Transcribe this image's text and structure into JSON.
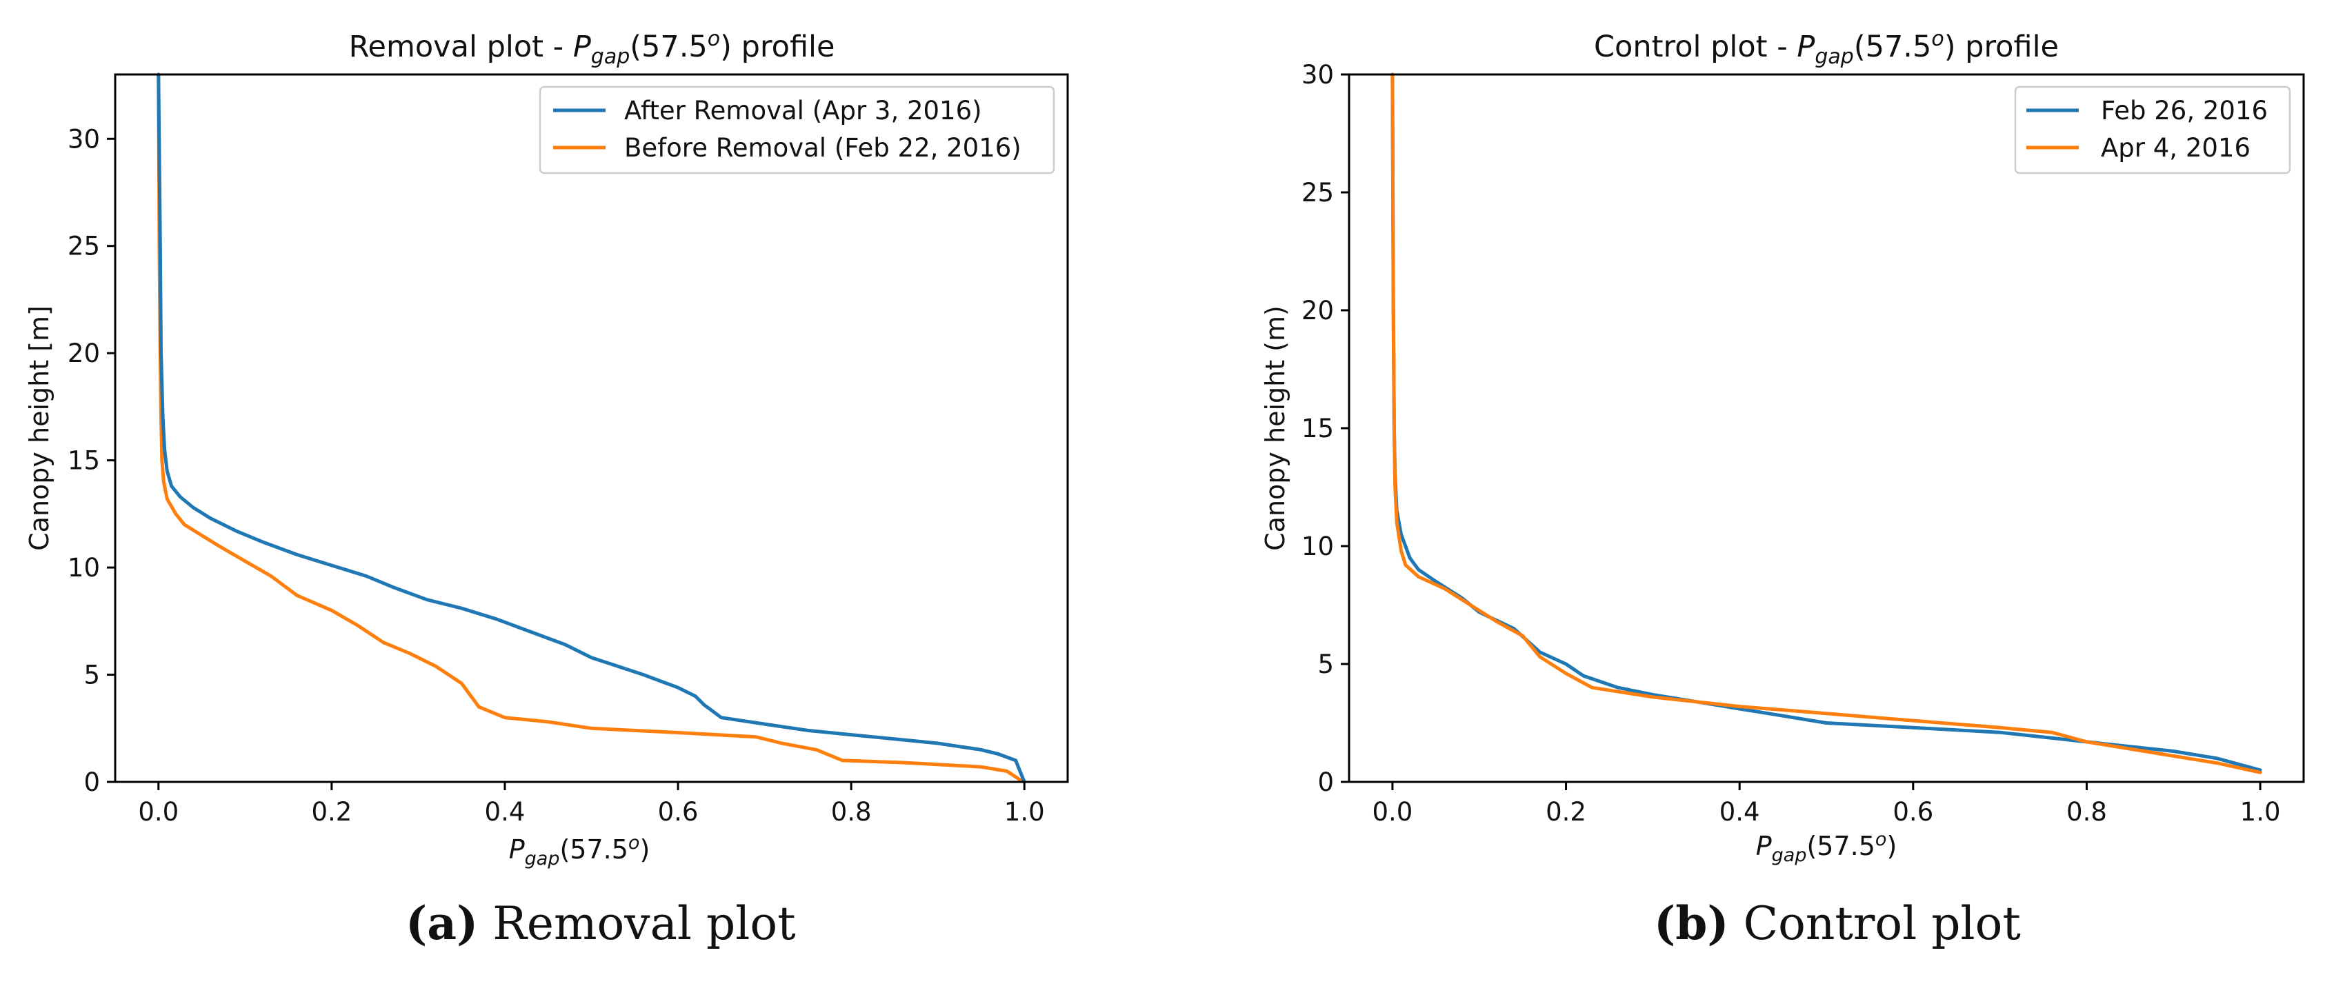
{
  "chart_data": [
    {
      "type": "line",
      "title_prefix": "Removal plot - ",
      "title_sym": "P",
      "title_sub": "gap",
      "title_arg": "(57.5",
      "title_sup": "o",
      "title_suffix": ") profile",
      "xlabel_sym": "P",
      "xlabel_sub": "gap",
      "xlabel_arg": "(57.5",
      "xlabel_sup": "o",
      "xlabel_suffix": ")",
      "ylabel": "Canopy height [m]",
      "xlim": [
        -0.05,
        1.05
      ],
      "ylim": [
        0,
        33
      ],
      "xticks": [
        0.0,
        0.2,
        0.4,
        0.6,
        0.8,
        1.0
      ],
      "xtick_labels": [
        "0.0",
        "0.2",
        "0.4",
        "0.6",
        "0.8",
        "1.0"
      ],
      "yticks": [
        0,
        5,
        10,
        15,
        20,
        25,
        30
      ],
      "ytick_labels": [
        "0",
        "5",
        "10",
        "15",
        "20",
        "25",
        "30"
      ],
      "legend_position": "top-right",
      "series": [
        {
          "name": "After Removal (Apr 3, 2016)",
          "color": "#1f77b4",
          "points": [
            [
              0.0,
              33
            ],
            [
              0.002,
              25
            ],
            [
              0.003,
              20
            ],
            [
              0.005,
              17
            ],
            [
              0.007,
              15.5
            ],
            [
              0.01,
              14.5
            ],
            [
              0.015,
              13.8
            ],
            [
              0.025,
              13.3
            ],
            [
              0.04,
              12.8
            ],
            [
              0.06,
              12.3
            ],
            [
              0.09,
              11.7
            ],
            [
              0.12,
              11.2
            ],
            [
              0.16,
              10.6
            ],
            [
              0.2,
              10.1
            ],
            [
              0.24,
              9.6
            ],
            [
              0.27,
              9.1
            ],
            [
              0.31,
              8.5
            ],
            [
              0.35,
              8.1
            ],
            [
              0.39,
              7.6
            ],
            [
              0.43,
              7.0
            ],
            [
              0.47,
              6.4
            ],
            [
              0.5,
              5.8
            ],
            [
              0.53,
              5.4
            ],
            [
              0.56,
              5.0
            ],
            [
              0.58,
              4.7
            ],
            [
              0.6,
              4.4
            ],
            [
              0.62,
              4.0
            ],
            [
              0.63,
              3.6
            ],
            [
              0.64,
              3.3
            ],
            [
              0.65,
              3.0
            ],
            [
              0.7,
              2.7
            ],
            [
              0.75,
              2.4
            ],
            [
              0.8,
              2.2
            ],
            [
              0.85,
              2.0
            ],
            [
              0.9,
              1.8
            ],
            [
              0.95,
              1.5
            ],
            [
              0.97,
              1.3
            ],
            [
              0.99,
              1.0
            ],
            [
              0.995,
              0.5
            ],
            [
              1.0,
              0.0
            ]
          ]
        },
        {
          "name": "Before Removal (Feb 22, 2016)",
          "color": "#ff7f0e",
          "points": [
            [
              0.0,
              33
            ],
            [
              0.001,
              25
            ],
            [
              0.002,
              20
            ],
            [
              0.003,
              17
            ],
            [
              0.004,
              15
            ],
            [
              0.006,
              14
            ],
            [
              0.01,
              13.2
            ],
            [
              0.02,
              12.5
            ],
            [
              0.03,
              12.0
            ],
            [
              0.05,
              11.5
            ],
            [
              0.07,
              11.0
            ],
            [
              0.1,
              10.3
            ],
            [
              0.13,
              9.6
            ],
            [
              0.16,
              8.7
            ],
            [
              0.2,
              8.0
            ],
            [
              0.23,
              7.3
            ],
            [
              0.26,
              6.5
            ],
            [
              0.29,
              6.0
            ],
            [
              0.32,
              5.4
            ],
            [
              0.35,
              4.6
            ],
            [
              0.37,
              3.5
            ],
            [
              0.4,
              3.0
            ],
            [
              0.45,
              2.8
            ],
            [
              0.5,
              2.5
            ],
            [
              0.6,
              2.3
            ],
            [
              0.69,
              2.1
            ],
            [
              0.72,
              1.8
            ],
            [
              0.76,
              1.5
            ],
            [
              0.79,
              1.0
            ],
            [
              0.86,
              0.9
            ],
            [
              0.95,
              0.7
            ],
            [
              0.98,
              0.5
            ],
            [
              0.995,
              0.1
            ],
            [
              1.0,
              0.0
            ]
          ]
        }
      ]
    },
    {
      "type": "line",
      "title_prefix": "Control plot - ",
      "title_sym": "P",
      "title_sub": "gap",
      "title_arg": "(57.5",
      "title_sup": "o",
      "title_suffix": ") profile",
      "xlabel_sym": "P",
      "xlabel_sub": "gap",
      "xlabel_arg": "(57.5",
      "xlabel_sup": "o",
      "xlabel_suffix": ")",
      "ylabel": "Canopy height (m)",
      "xlim": [
        -0.05,
        1.05
      ],
      "ylim": [
        0,
        30
      ],
      "xticks": [
        0.0,
        0.2,
        0.4,
        0.6,
        0.8,
        1.0
      ],
      "xtick_labels": [
        "0.0",
        "0.2",
        "0.4",
        "0.6",
        "0.8",
        "1.0"
      ],
      "yticks": [
        0,
        5,
        10,
        15,
        20,
        25,
        30
      ],
      "ytick_labels": [
        "0",
        "5",
        "10",
        "15",
        "20",
        "25",
        "30"
      ],
      "legend_position": "top-right",
      "series": [
        {
          "name": "Feb 26, 2016",
          "color": "#1f77b4",
          "points": [
            [
              0.0,
              30
            ],
            [
              0.001,
              20
            ],
            [
              0.002,
              15
            ],
            [
              0.003,
              13
            ],
            [
              0.005,
              11.5
            ],
            [
              0.01,
              10.5
            ],
            [
              0.02,
              9.5
            ],
            [
              0.03,
              9.0
            ],
            [
              0.05,
              8.5
            ],
            [
              0.08,
              7.8
            ],
            [
              0.1,
              7.2
            ],
            [
              0.14,
              6.5
            ],
            [
              0.17,
              5.5
            ],
            [
              0.2,
              5.0
            ],
            [
              0.22,
              4.5
            ],
            [
              0.26,
              4.0
            ],
            [
              0.3,
              3.7
            ],
            [
              0.35,
              3.4
            ],
            [
              0.4,
              3.1
            ],
            [
              0.45,
              2.8
            ],
            [
              0.5,
              2.5
            ],
            [
              0.6,
              2.3
            ],
            [
              0.7,
              2.1
            ],
            [
              0.75,
              1.9
            ],
            [
              0.8,
              1.7
            ],
            [
              0.85,
              1.5
            ],
            [
              0.9,
              1.3
            ],
            [
              0.95,
              1.0
            ],
            [
              1.0,
              0.5
            ]
          ]
        },
        {
          "name": "Apr 4, 2016",
          "color": "#ff7f0e",
          "points": [
            [
              0.0,
              30
            ],
            [
              0.001,
              20
            ],
            [
              0.002,
              15
            ],
            [
              0.003,
              12.5
            ],
            [
              0.005,
              11
            ],
            [
              0.01,
              9.8
            ],
            [
              0.015,
              9.2
            ],
            [
              0.03,
              8.7
            ],
            [
              0.06,
              8.2
            ],
            [
              0.09,
              7.5
            ],
            [
              0.12,
              6.8
            ],
            [
              0.15,
              6.2
            ],
            [
              0.17,
              5.3
            ],
            [
              0.2,
              4.6
            ],
            [
              0.23,
              4.0
            ],
            [
              0.3,
              3.6
            ],
            [
              0.4,
              3.2
            ],
            [
              0.5,
              2.9
            ],
            [
              0.6,
              2.6
            ],
            [
              0.7,
              2.3
            ],
            [
              0.76,
              2.1
            ],
            [
              0.8,
              1.7
            ],
            [
              0.85,
              1.4
            ],
            [
              0.9,
              1.1
            ],
            [
              0.95,
              0.8
            ],
            [
              1.0,
              0.4
            ]
          ]
        }
      ]
    }
  ],
  "captions": [
    {
      "label": "(a)",
      "text": " Removal plot"
    },
    {
      "label": "(b)",
      "text": " Control plot"
    }
  ]
}
